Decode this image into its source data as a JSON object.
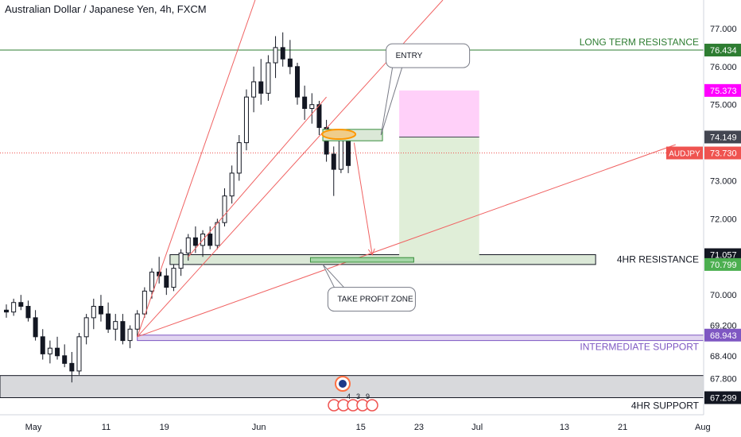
{
  "header": {
    "title": "Australian Dollar / Japanese Yen, 4h, FXCM"
  },
  "chart_data": {
    "type": "candlestick",
    "symbol": "AUDJPY",
    "timeframe": "4h",
    "ylim": [
      66.85,
      77.75
    ],
    "y_ticks": [
      {
        "value": 77.0,
        "label": "77.000"
      },
      {
        "value": 76.0,
        "label": "76.000"
      },
      {
        "value": 75.0,
        "label": "75.000"
      },
      {
        "value": 73.0,
        "label": "73.000"
      },
      {
        "value": 72.0,
        "label": "72.000"
      },
      {
        "value": 70.0,
        "label": "70.000"
      },
      {
        "value": 69.2,
        "label": "69.200"
      },
      {
        "value": 68.4,
        "label": "68.400"
      },
      {
        "value": 67.8,
        "label": "67.800"
      }
    ],
    "x_ticks": [
      {
        "t": 0,
        "label": "May"
      },
      {
        "t": 10,
        "label": "11"
      },
      {
        "t": 18,
        "label": "19"
      },
      {
        "t": 31,
        "label": "Jun"
      },
      {
        "t": 45,
        "label": "15"
      },
      {
        "t": 53,
        "label": "23"
      },
      {
        "t": 61,
        "label": "Jul"
      },
      {
        "t": 73,
        "label": "13"
      },
      {
        "t": 81,
        "label": "21"
      },
      {
        "t": 92,
        "label": "Aug"
      }
    ],
    "price_labels": [
      {
        "name": "long-term-resistance-price",
        "value": 76.434,
        "label": "76.434",
        "bg": "#2e7d32",
        "fg": "#ffffff"
      },
      {
        "name": "target-price",
        "value": 75.373,
        "label": "75.373",
        "bg": "#ff00ff",
        "fg": "#ffffff"
      },
      {
        "name": "entry-price",
        "value": 74.149,
        "label": "74.149",
        "bg": "#434651",
        "fg": "#ffffff"
      },
      {
        "name": "resistance-top-price",
        "value": 71.057,
        "label": "71.057",
        "bg": "#131722",
        "fg": "#ffffff"
      },
      {
        "name": "resistance-bottom-price",
        "value": 70.799,
        "label": "70.799",
        "bg": "#4caf50",
        "fg": "#ffffff"
      },
      {
        "name": "intermediate-support-price",
        "value": 68.943,
        "label": "68.943",
        "bg": "#7e57c2",
        "fg": "#ffffff"
      },
      {
        "name": "support-price",
        "value": 67.299,
        "label": "67.299",
        "bg": "#131722",
        "fg": "#ffffff"
      }
    ],
    "current_price": {
      "symbol_label": "AUDJPY",
      "value": 73.73,
      "label": "73.730",
      "color": "#ef5350"
    },
    "levels": [
      {
        "name": "long-term-resistance",
        "label": "LONG TERM RESISTANCE",
        "value": 76.434,
        "color": "#2e7d32"
      },
      {
        "name": "4hr-resistance",
        "label": "4HR RESISTANCE",
        "from": 70.799,
        "to": 71.057,
        "color": "#131722"
      },
      {
        "name": "intermediate-support",
        "label": "INTERMEDIATE SUPPORT",
        "from": 68.8,
        "to": 68.943,
        "color": "#7e57c2"
      },
      {
        "name": "4hr-support",
        "label": "4HR SUPPORT",
        "from": 67.299,
        "to": 67.88,
        "color": "#131722"
      }
    ],
    "position": {
      "entry": 74.149,
      "target": 75.373,
      "stop": 70.9,
      "t_start": 54,
      "t_end": 65
    },
    "annotations": [
      {
        "name": "entry-callout",
        "text": "ENTRY"
      },
      {
        "name": "take-profit-callout",
        "text": "TAKE PROFIT ZONE"
      }
    ],
    "event_markers": [
      "4",
      "3",
      "9"
    ],
    "candles": [
      {
        "t": 0,
        "o": 69.6,
        "h": 69.75,
        "l": 69.4,
        "c": 69.55
      },
      {
        "t": 1,
        "o": 69.55,
        "h": 69.9,
        "l": 69.45,
        "c": 69.8
      },
      {
        "t": 2,
        "o": 69.8,
        "h": 70.0,
        "l": 69.6,
        "c": 69.7
      },
      {
        "t": 3,
        "o": 69.7,
        "h": 69.85,
        "l": 69.3,
        "c": 69.4
      },
      {
        "t": 4,
        "o": 69.4,
        "h": 69.6,
        "l": 68.8,
        "c": 68.9
      },
      {
        "t": 5,
        "o": 68.9,
        "h": 69.1,
        "l": 68.3,
        "c": 68.45
      },
      {
        "t": 6,
        "o": 68.45,
        "h": 68.8,
        "l": 68.2,
        "c": 68.6
      },
      {
        "t": 7,
        "o": 68.6,
        "h": 68.9,
        "l": 68.3,
        "c": 68.4
      },
      {
        "t": 8,
        "o": 68.4,
        "h": 68.7,
        "l": 68.1,
        "c": 68.2
      },
      {
        "t": 9,
        "o": 68.2,
        "h": 68.5,
        "l": 67.7,
        "c": 68.0
      },
      {
        "t": 10,
        "o": 68.0,
        "h": 69.0,
        "l": 67.9,
        "c": 68.9
      },
      {
        "t": 11,
        "o": 68.9,
        "h": 69.5,
        "l": 68.7,
        "c": 69.4
      },
      {
        "t": 12,
        "o": 69.4,
        "h": 69.9,
        "l": 69.1,
        "c": 69.7
      },
      {
        "t": 13,
        "o": 69.7,
        "h": 70.0,
        "l": 69.3,
        "c": 69.5
      },
      {
        "t": 14,
        "o": 69.5,
        "h": 69.8,
        "l": 69.0,
        "c": 69.1
      },
      {
        "t": 15,
        "o": 69.1,
        "h": 69.5,
        "l": 68.8,
        "c": 69.3
      },
      {
        "t": 16,
        "o": 69.3,
        "h": 69.5,
        "l": 68.7,
        "c": 68.8
      },
      {
        "t": 17,
        "o": 68.8,
        "h": 69.2,
        "l": 68.6,
        "c": 69.1
      },
      {
        "t": 18,
        "o": 69.1,
        "h": 69.6,
        "l": 68.9,
        "c": 69.5
      },
      {
        "t": 19,
        "o": 69.5,
        "h": 70.2,
        "l": 69.4,
        "c": 70.1
      },
      {
        "t": 20,
        "o": 70.1,
        "h": 70.7,
        "l": 69.9,
        "c": 70.6
      },
      {
        "t": 21,
        "o": 70.6,
        "h": 71.0,
        "l": 70.3,
        "c": 70.5
      },
      {
        "t": 22,
        "o": 70.5,
        "h": 70.7,
        "l": 70.0,
        "c": 70.2
      },
      {
        "t": 23,
        "o": 70.2,
        "h": 70.8,
        "l": 70.1,
        "c": 70.7
      },
      {
        "t": 24,
        "o": 70.7,
        "h": 71.2,
        "l": 70.5,
        "c": 71.1
      },
      {
        "t": 25,
        "o": 71.1,
        "h": 71.6,
        "l": 70.9,
        "c": 71.5
      },
      {
        "t": 26,
        "o": 71.5,
        "h": 71.8,
        "l": 71.1,
        "c": 71.3
      },
      {
        "t": 27,
        "o": 71.3,
        "h": 71.7,
        "l": 71.0,
        "c": 71.6
      },
      {
        "t": 28,
        "o": 71.6,
        "h": 71.8,
        "l": 71.2,
        "c": 71.3
      },
      {
        "t": 29,
        "o": 71.3,
        "h": 72.0,
        "l": 71.2,
        "c": 71.9
      },
      {
        "t": 30,
        "o": 71.9,
        "h": 72.8,
        "l": 71.8,
        "c": 72.6
      },
      {
        "t": 31,
        "o": 72.6,
        "h": 73.4,
        "l": 72.4,
        "c": 73.2
      },
      {
        "t": 32,
        "o": 73.2,
        "h": 74.2,
        "l": 73.0,
        "c": 74.0
      },
      {
        "t": 33,
        "o": 74.0,
        "h": 75.4,
        "l": 73.8,
        "c": 75.2
      },
      {
        "t": 34,
        "o": 75.2,
        "h": 76.0,
        "l": 74.8,
        "c": 75.6
      },
      {
        "t": 35,
        "o": 75.6,
        "h": 76.2,
        "l": 75.0,
        "c": 75.3
      },
      {
        "t": 36,
        "o": 75.3,
        "h": 76.3,
        "l": 75.1,
        "c": 76.1
      },
      {
        "t": 37,
        "o": 76.1,
        "h": 76.8,
        "l": 75.7,
        "c": 76.5
      },
      {
        "t": 38,
        "o": 76.5,
        "h": 76.9,
        "l": 76.0,
        "c": 76.2
      },
      {
        "t": 39,
        "o": 76.2,
        "h": 76.7,
        "l": 75.8,
        "c": 76.0
      },
      {
        "t": 40,
        "o": 76.0,
        "h": 76.1,
        "l": 75.0,
        "c": 75.2
      },
      {
        "t": 41,
        "o": 75.2,
        "h": 75.5,
        "l": 74.6,
        "c": 74.9
      },
      {
        "t": 42,
        "o": 74.9,
        "h": 75.3,
        "l": 74.5,
        "c": 75.0
      },
      {
        "t": 43,
        "o": 75.0,
        "h": 75.1,
        "l": 74.2,
        "c": 74.4
      },
      {
        "t": 44,
        "o": 74.4,
        "h": 74.6,
        "l": 73.5,
        "c": 73.7
      },
      {
        "t": 45,
        "o": 73.7,
        "h": 73.9,
        "l": 72.6,
        "c": 73.3
      },
      {
        "t": 46,
        "o": 73.3,
        "h": 74.3,
        "l": 73.2,
        "c": 74.1
      },
      {
        "t": 47,
        "o": 74.1,
        "h": 74.2,
        "l": 73.2,
        "c": 73.4
      }
    ]
  }
}
